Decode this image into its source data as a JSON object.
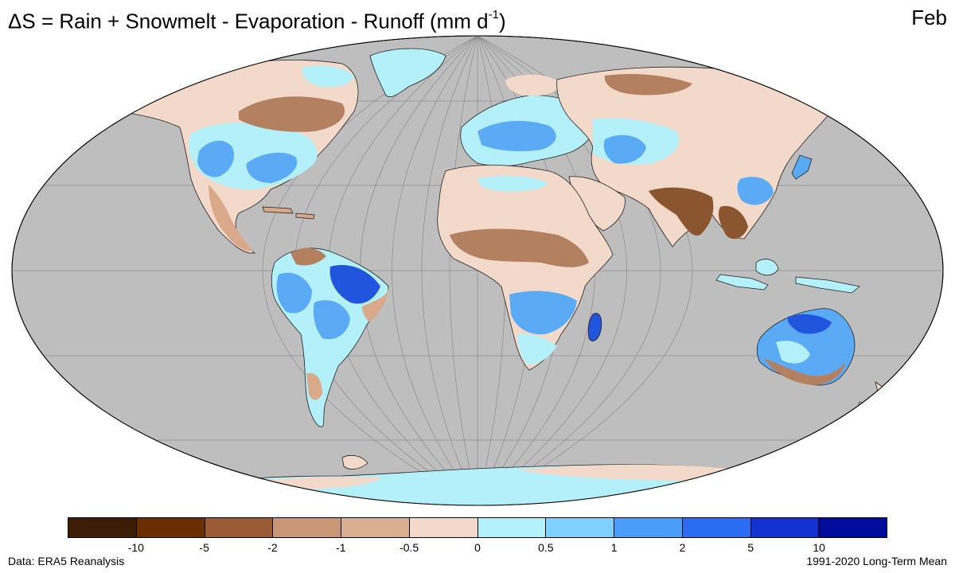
{
  "title": {
    "delta": "ΔS",
    "text": " = Rain + Snowmelt - Evaporation - Runoff (mm  d",
    "exponent": "-1",
    "close": ")"
  },
  "month": "Feb",
  "source": "Data: ERA5 Reanalysis",
  "period": "1991-2020 Long-Term Mean",
  "colors": {
    "ocean": "#bebebe",
    "land_dry_light": "#f2d9c9",
    "land_dry_mid": "#d9a98a",
    "land_dry_dark": "#8b5530",
    "land_wet_light": "#b4f0fa",
    "land_wet_mid": "#5aaaf5",
    "land_wet_dark": "#2255dd"
  },
  "legend": {
    "swatches": [
      "#3d1d06",
      "#6b2e02",
      "#9a5b34",
      "#c99776",
      "#dbad91",
      "#f3d9c9",
      "#b3f1fd",
      "#7fd0fd",
      "#4a9efa",
      "#2a6cf2",
      "#1432cf",
      "#000c9b"
    ],
    "ticks": [
      "-10",
      "-5",
      "-2",
      "-1",
      "-0.5",
      "0",
      "0.5",
      "1",
      "2",
      "5",
      "10"
    ]
  }
}
